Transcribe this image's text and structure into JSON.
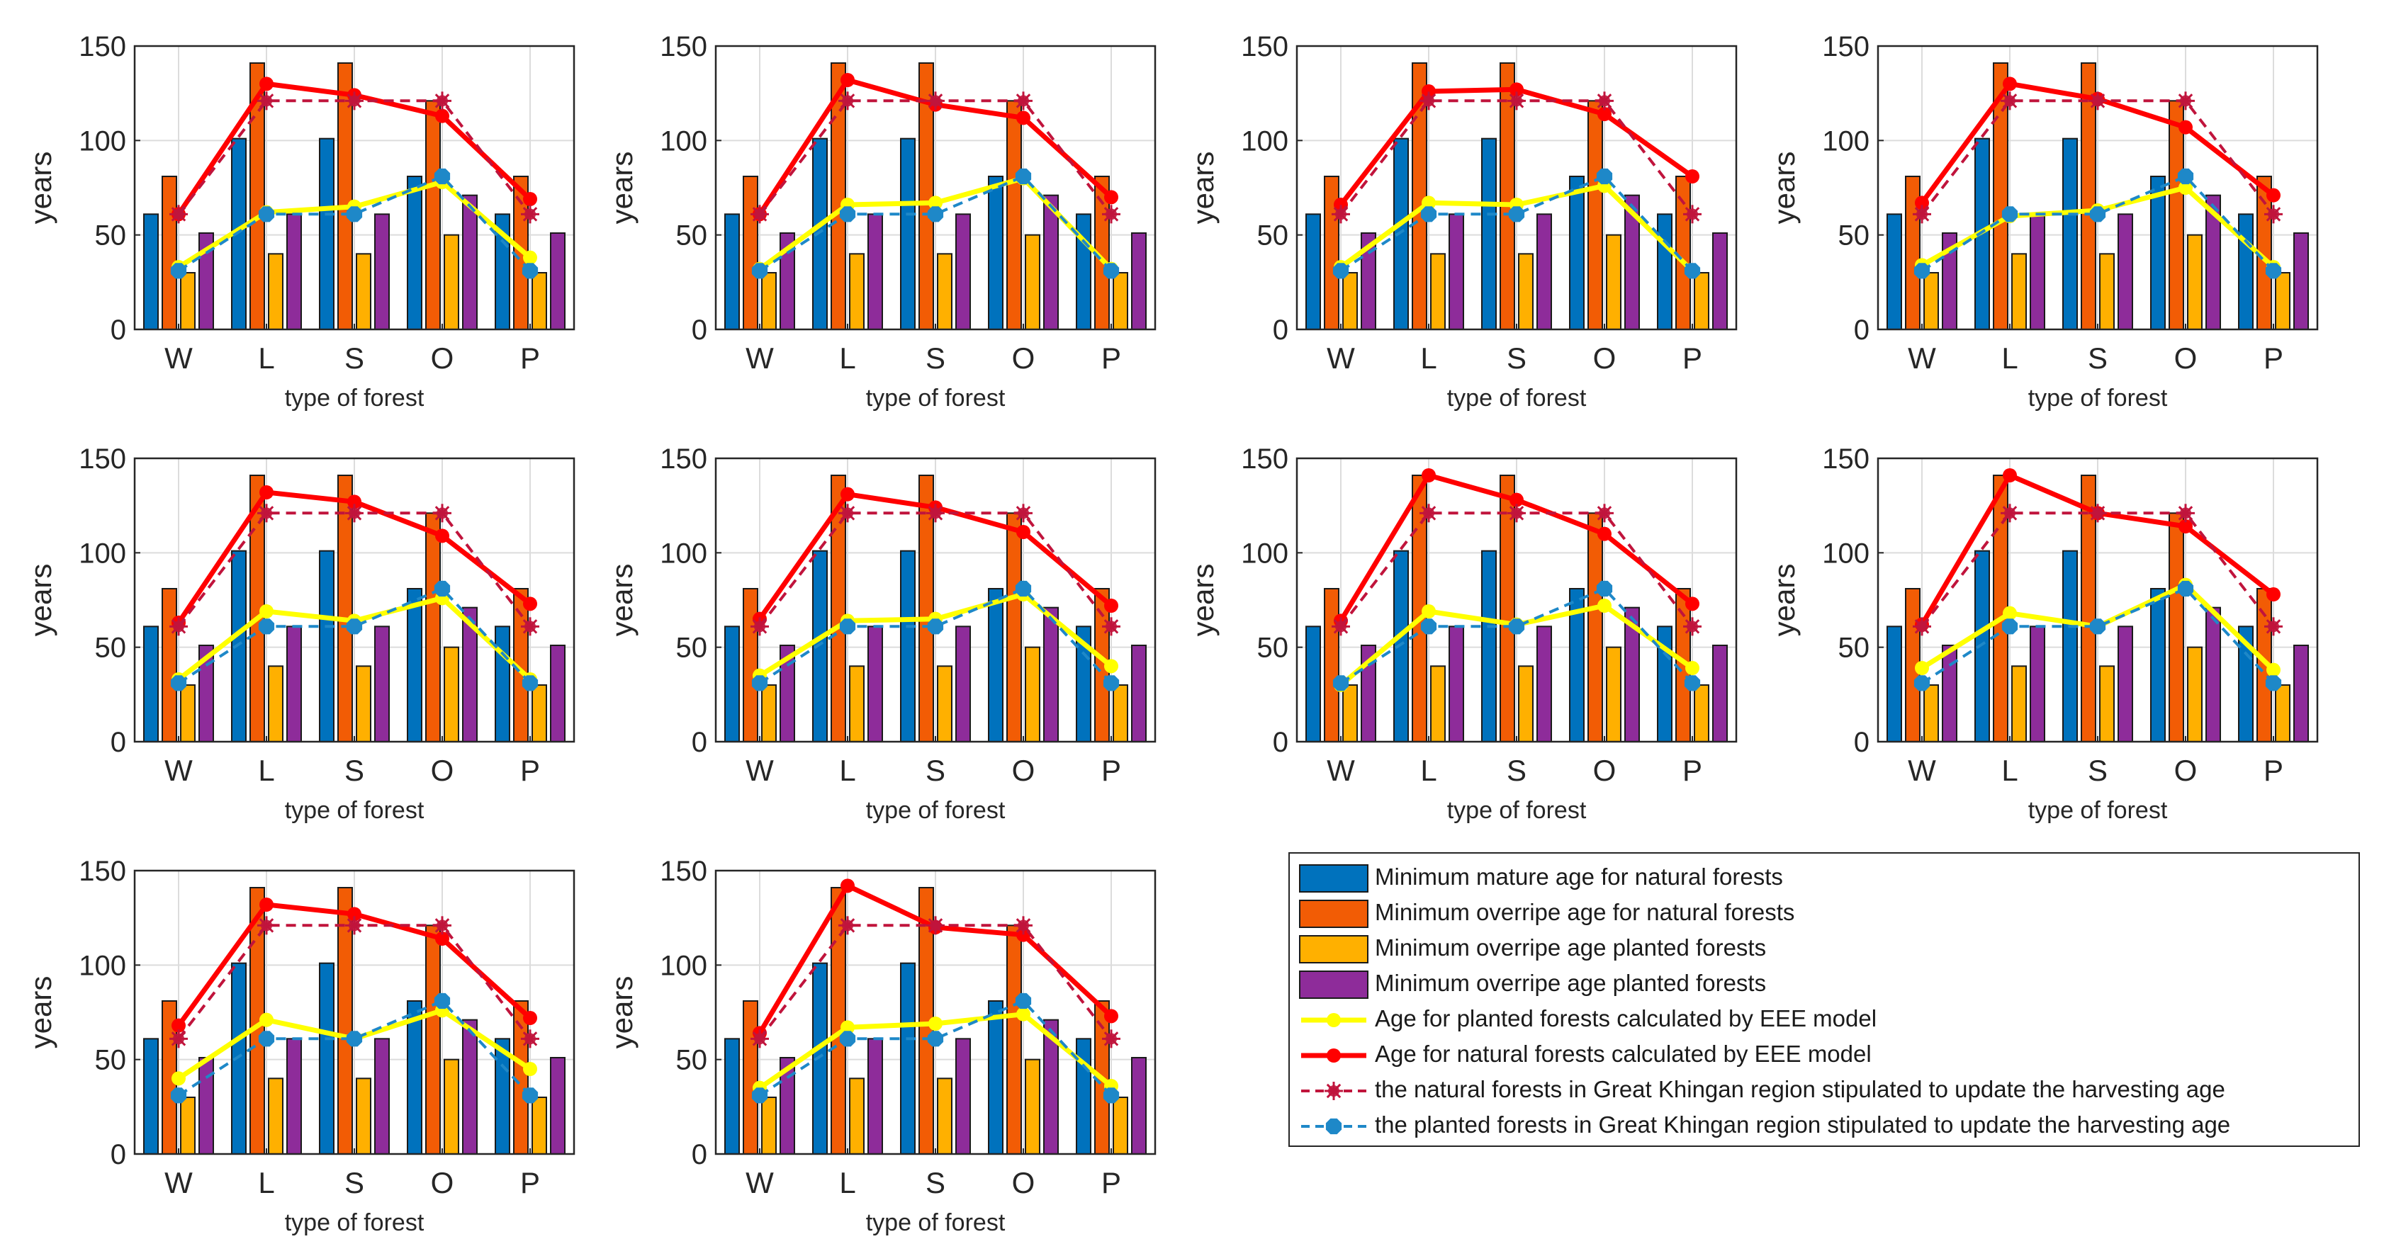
{
  "series_styles": [
    {
      "key": "mature_natural",
      "kind": "bar",
      "color": "#0072BD"
    },
    {
      "key": "overripe_natural",
      "kind": "bar",
      "color": "#F25C05"
    },
    {
      "key": "overripe_planted",
      "kind": "bar",
      "color": "#FFB000"
    },
    {
      "key": "overripe_planted_purple",
      "kind": "bar",
      "color": "#8E2C9A"
    },
    {
      "key": "eee_planted",
      "kind": "line",
      "color": "#FFFF00",
      "dash": "solid"
    },
    {
      "key": "eee_natural",
      "kind": "line",
      "color": "#FF0000",
      "dash": "solid"
    },
    {
      "key": "stip_natural",
      "kind": "line",
      "color": "#C0143C",
      "dash": "dashed"
    },
    {
      "key": "stip_planted",
      "kind": "line",
      "color": "#1E88C8",
      "dash": "dashed"
    }
  ],
  "legend": [
    "Minimum mature age for natural forests",
    "Minimum overripe age for natural forests",
    "Minimum overripe age planted forests",
    "Minimum overripe age planted forests",
    "Age for planted forests calculated by EEE model",
    "Age for natural forests calculated by EEE model",
    "the natural forests in Great Khingan region stipulated to update the harvesting age",
    "the planted forests in Great Khingan region stipulated to update the harvesting age"
  ],
  "chart_data": [
    {
      "type": "bar",
      "xlabel": "type of forest",
      "ylabel": "years",
      "ylim": [
        0,
        150
      ],
      "yticks": [
        0,
        50,
        100,
        150
      ],
      "categories": [
        "W",
        "L",
        "S",
        "O",
        "P"
      ],
      "grid": true,
      "series": [
        {
          "values": [
            61,
            101,
            101,
            81,
            61
          ]
        },
        {
          "values": [
            81,
            141,
            141,
            121,
            81
          ]
        },
        {
          "values": [
            30,
            40,
            40,
            50,
            30
          ]
        },
        {
          "values": [
            51,
            61,
            61,
            71,
            51
          ]
        },
        {
          "values": [
            33,
            62,
            65,
            78,
            38
          ]
        },
        {
          "values": [
            61,
            130,
            124,
            113,
            69
          ]
        },
        {
          "values": [
            61,
            121,
            121,
            121,
            61
          ]
        },
        {
          "values": [
            31,
            61,
            61,
            81,
            31
          ]
        }
      ]
    },
    {
      "type": "bar",
      "xlabel": "type of forest",
      "ylabel": "years",
      "ylim": [
        0,
        150
      ],
      "yticks": [
        0,
        50,
        100,
        150
      ],
      "categories": [
        "W",
        "L",
        "S",
        "O",
        "P"
      ],
      "grid": true,
      "series": [
        {
          "values": [
            61,
            101,
            101,
            81,
            61
          ]
        },
        {
          "values": [
            81,
            141,
            141,
            121,
            81
          ]
        },
        {
          "values": [
            30,
            40,
            40,
            50,
            30
          ]
        },
        {
          "values": [
            51,
            61,
            61,
            71,
            51
          ]
        },
        {
          "values": [
            32,
            66,
            67,
            80,
            32
          ]
        },
        {
          "values": [
            61,
            132,
            119,
            112,
            70
          ]
        },
        {
          "values": [
            61,
            121,
            121,
            121,
            61
          ]
        },
        {
          "values": [
            31,
            61,
            61,
            81,
            31
          ]
        }
      ]
    },
    {
      "type": "bar",
      "xlabel": "type of forest",
      "ylabel": "years",
      "ylim": [
        0,
        150
      ],
      "yticks": [
        0,
        50,
        100,
        150
      ],
      "categories": [
        "W",
        "L",
        "S",
        "O",
        "P"
      ],
      "grid": true,
      "series": [
        {
          "values": [
            61,
            101,
            101,
            81,
            61
          ]
        },
        {
          "values": [
            81,
            141,
            141,
            121,
            81
          ]
        },
        {
          "values": [
            30,
            40,
            40,
            50,
            30
          ]
        },
        {
          "values": [
            51,
            61,
            61,
            71,
            51
          ]
        },
        {
          "values": [
            33,
            67,
            66,
            76,
            31
          ]
        },
        {
          "values": [
            66,
            126,
            127,
            114,
            81
          ]
        },
        {
          "values": [
            61,
            121,
            121,
            121,
            61
          ]
        },
        {
          "values": [
            31,
            61,
            61,
            81,
            31
          ]
        }
      ]
    },
    {
      "type": "bar",
      "xlabel": "type of forest",
      "ylabel": "years",
      "ylim": [
        0,
        150
      ],
      "yticks": [
        0,
        50,
        100,
        150
      ],
      "categories": [
        "W",
        "L",
        "S",
        "O",
        "P"
      ],
      "grid": true,
      "series": [
        {
          "values": [
            61,
            101,
            101,
            81,
            61
          ]
        },
        {
          "values": [
            81,
            141,
            141,
            121,
            81
          ]
        },
        {
          "values": [
            30,
            40,
            40,
            50,
            30
          ]
        },
        {
          "values": [
            51,
            61,
            61,
            71,
            51
          ]
        },
        {
          "values": [
            34,
            60,
            63,
            75,
            33
          ]
        },
        {
          "values": [
            67,
            130,
            122,
            107,
            71
          ]
        },
        {
          "values": [
            61,
            121,
            121,
            121,
            61
          ]
        },
        {
          "values": [
            31,
            61,
            61,
            81,
            31
          ]
        }
      ]
    },
    {
      "type": "bar",
      "xlabel": "type of forest",
      "ylabel": "years",
      "ylim": [
        0,
        150
      ],
      "yticks": [
        0,
        50,
        100,
        150
      ],
      "categories": [
        "W",
        "L",
        "S",
        "O",
        "P"
      ],
      "grid": true,
      "series": [
        {
          "values": [
            61,
            101,
            101,
            81,
            61
          ]
        },
        {
          "values": [
            81,
            141,
            141,
            121,
            81
          ]
        },
        {
          "values": [
            30,
            40,
            40,
            50,
            30
          ]
        },
        {
          "values": [
            51,
            61,
            61,
            71,
            51
          ]
        },
        {
          "values": [
            33,
            69,
            64,
            76,
            33
          ]
        },
        {
          "values": [
            63,
            132,
            127,
            109,
            73
          ]
        },
        {
          "values": [
            61,
            121,
            121,
            121,
            61
          ]
        },
        {
          "values": [
            31,
            61,
            61,
            81,
            31
          ]
        }
      ]
    },
    {
      "type": "bar",
      "xlabel": "type of forest",
      "ylabel": "years",
      "ylim": [
        0,
        150
      ],
      "yticks": [
        0,
        50,
        100,
        150
      ],
      "categories": [
        "W",
        "L",
        "S",
        "O",
        "P"
      ],
      "grid": true,
      "series": [
        {
          "values": [
            61,
            101,
            101,
            81,
            61
          ]
        },
        {
          "values": [
            81,
            141,
            141,
            121,
            81
          ]
        },
        {
          "values": [
            30,
            40,
            40,
            50,
            30
          ]
        },
        {
          "values": [
            51,
            61,
            61,
            71,
            51
          ]
        },
        {
          "values": [
            35,
            64,
            65,
            78,
            40
          ]
        },
        {
          "values": [
            65,
            131,
            124,
            111,
            72
          ]
        },
        {
          "values": [
            61,
            121,
            121,
            121,
            61
          ]
        },
        {
          "values": [
            31,
            61,
            61,
            81,
            31
          ]
        }
      ]
    },
    {
      "type": "bar",
      "xlabel": "type of forest",
      "ylabel": "years",
      "ylim": [
        0,
        150
      ],
      "yticks": [
        0,
        50,
        100,
        150
      ],
      "categories": [
        "W",
        "L",
        "S",
        "O",
        "P"
      ],
      "grid": true,
      "series": [
        {
          "values": [
            61,
            101,
            101,
            81,
            61
          ]
        },
        {
          "values": [
            81,
            141,
            141,
            121,
            81
          ]
        },
        {
          "values": [
            30,
            40,
            40,
            50,
            30
          ]
        },
        {
          "values": [
            51,
            61,
            61,
            71,
            51
          ]
        },
        {
          "values": [
            30,
            69,
            62,
            72,
            39
          ]
        },
        {
          "values": [
            64,
            141,
            128,
            110,
            73
          ]
        },
        {
          "values": [
            61,
            121,
            121,
            121,
            61
          ]
        },
        {
          "values": [
            31,
            61,
            61,
            81,
            31
          ]
        }
      ]
    },
    {
      "type": "bar",
      "xlabel": "type of forest",
      "ylabel": "years",
      "ylim": [
        0,
        150
      ],
      "yticks": [
        0,
        50,
        100,
        150
      ],
      "categories": [
        "W",
        "L",
        "S",
        "O",
        "P"
      ],
      "grid": true,
      "series": [
        {
          "values": [
            61,
            101,
            101,
            81,
            61
          ]
        },
        {
          "values": [
            81,
            141,
            141,
            121,
            81
          ]
        },
        {
          "values": [
            30,
            40,
            40,
            50,
            30
          ]
        },
        {
          "values": [
            51,
            61,
            61,
            71,
            51
          ]
        },
        {
          "values": [
            39,
            68,
            61,
            83,
            38
          ]
        },
        {
          "values": [
            62,
            141,
            121,
            114,
            78
          ]
        },
        {
          "values": [
            61,
            121,
            121,
            121,
            61
          ]
        },
        {
          "values": [
            31,
            61,
            61,
            81,
            31
          ]
        }
      ]
    },
    {
      "type": "bar",
      "xlabel": "type of forest",
      "ylabel": "years",
      "ylim": [
        0,
        150
      ],
      "yticks": [
        0,
        50,
        100,
        150
      ],
      "categories": [
        "W",
        "L",
        "S",
        "O",
        "P"
      ],
      "grid": true,
      "series": [
        {
          "values": [
            61,
            101,
            101,
            81,
            61
          ]
        },
        {
          "values": [
            81,
            141,
            141,
            121,
            81
          ]
        },
        {
          "values": [
            30,
            40,
            40,
            50,
            30
          ]
        },
        {
          "values": [
            51,
            61,
            61,
            71,
            51
          ]
        },
        {
          "values": [
            40,
            71,
            61,
            76,
            45
          ]
        },
        {
          "values": [
            68,
            132,
            127,
            114,
            72
          ]
        },
        {
          "values": [
            61,
            121,
            121,
            121,
            61
          ]
        },
        {
          "values": [
            31,
            61,
            61,
            81,
            31
          ]
        }
      ]
    },
    {
      "type": "bar",
      "xlabel": "type of forest",
      "ylabel": "years",
      "ylim": [
        0,
        150
      ],
      "yticks": [
        0,
        50,
        100,
        150
      ],
      "categories": [
        "W",
        "L",
        "S",
        "O",
        "P"
      ],
      "grid": true,
      "series": [
        {
          "values": [
            61,
            101,
            101,
            81,
            61
          ]
        },
        {
          "values": [
            81,
            141,
            141,
            121,
            81
          ]
        },
        {
          "values": [
            30,
            40,
            40,
            50,
            30
          ]
        },
        {
          "values": [
            51,
            61,
            61,
            71,
            51
          ]
        },
        {
          "values": [
            35,
            67,
            69,
            74,
            36
          ]
        },
        {
          "values": [
            64,
            142,
            120,
            116,
            73
          ]
        },
        {
          "values": [
            61,
            121,
            121,
            121,
            61
          ]
        },
        {
          "values": [
            31,
            61,
            61,
            81,
            31
          ]
        }
      ]
    }
  ]
}
